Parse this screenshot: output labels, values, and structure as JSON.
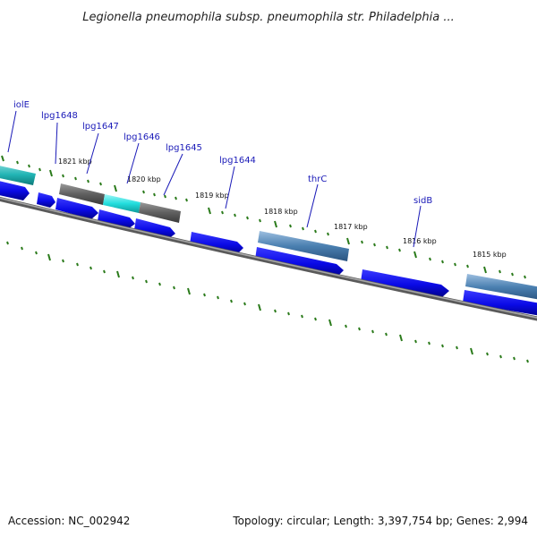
{
  "title": "Legionella pneumophila subsp. pneumophila str. Philadelphia ...",
  "footer": {
    "accession": "Accession: NC_002942",
    "summary": "Topology: circular; Length: 3,397,754 bp; Genes: 2,994"
  },
  "colors": {
    "cds": "#0a0ae6",
    "backbone": "#7a7a7a",
    "ticks": "#2a7a1a",
    "gene_label": "#1a1ab8",
    "highlight_cyan": "#22dddd",
    "highlight_gray": "#606060",
    "highlight_steel": "#4a7fb0"
  },
  "gene_labels": [
    "iolE",
    "lpg1648",
    "lpg1647",
    "lpg1646",
    "lpg1645",
    "lpg1644",
    "thrC",
    "sidB"
  ],
  "kbp_labels": [
    "1821 kbp",
    "1820 kbp",
    "1819 kbp",
    "1818 kbp",
    "1817 kbp",
    "1816 kbp",
    "1815 kbp"
  ]
}
